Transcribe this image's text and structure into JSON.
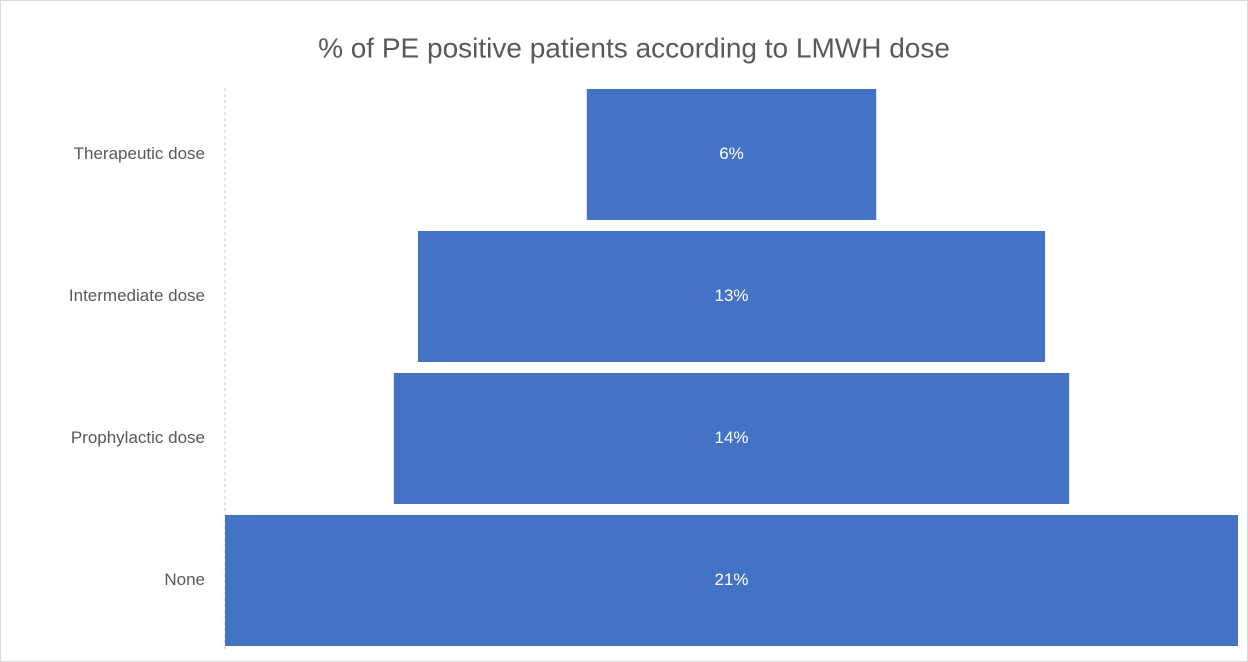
{
  "chart_data": {
    "type": "funnel",
    "title": "% of PE positive patients according to LMWH dose",
    "categories": [
      "Therapeutic dose",
      "Intermediate dose",
      "Prophylactic dose",
      "None"
    ],
    "values": [
      6,
      13,
      14,
      21
    ],
    "value_labels": [
      "6%",
      "13%",
      "14%",
      "21%"
    ],
    "color": "#4472c4"
  }
}
